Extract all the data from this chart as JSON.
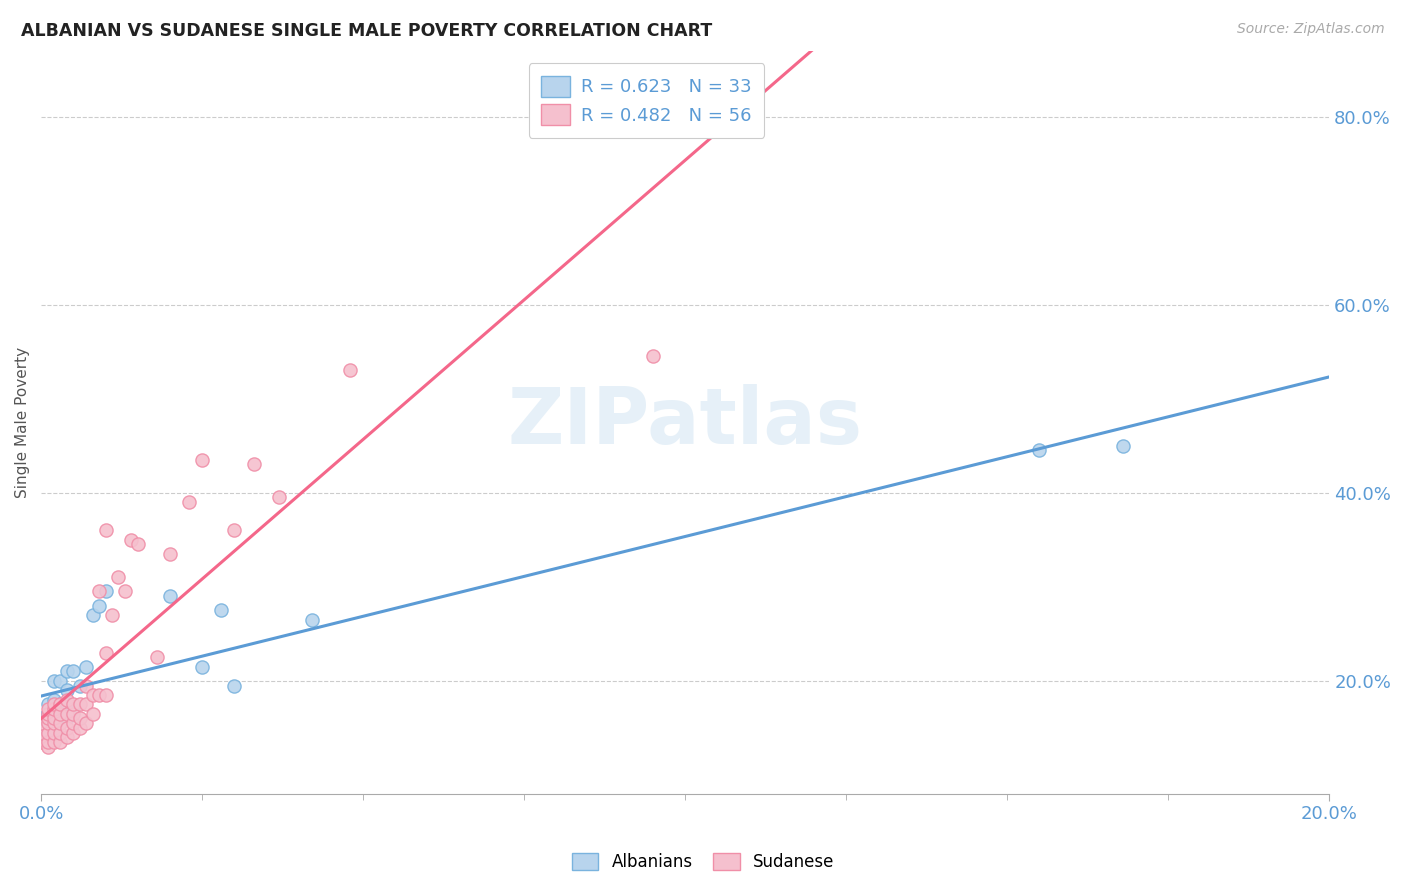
{
  "title": "ALBANIAN VS SUDANESE SINGLE MALE POVERTY CORRELATION CHART",
  "source": "Source: ZipAtlas.com",
  "ylabel": "Single Male Poverty",
  "blue_color": "#7ab3de",
  "blue_fill": "#b8d4ed",
  "pink_color": "#f08fa8",
  "pink_fill": "#f5c0ce",
  "line_blue": "#5b9bd5",
  "line_pink": "#f4678a",
  "R_blue": 0.623,
  "N_blue": 33,
  "R_pink": 0.482,
  "N_pink": 56,
  "watermark": "ZIPatlas",
  "legend_label_blue": "Albanians",
  "legend_label_pink": "Sudanese",
  "background_color": "#ffffff",
  "grid_color": "#cccccc",
  "albanian_x": [
    0.0,
    0.0,
    0.001,
    0.001,
    0.001,
    0.001,
    0.002,
    0.002,
    0.002,
    0.002,
    0.002,
    0.003,
    0.003,
    0.003,
    0.003,
    0.004,
    0.004,
    0.004,
    0.004,
    0.005,
    0.005,
    0.006,
    0.007,
    0.008,
    0.009,
    0.01,
    0.02,
    0.025,
    0.028,
    0.03,
    0.042,
    0.155,
    0.168
  ],
  "albanian_y": [
    0.155,
    0.16,
    0.145,
    0.155,
    0.165,
    0.175,
    0.15,
    0.16,
    0.17,
    0.18,
    0.2,
    0.155,
    0.165,
    0.175,
    0.2,
    0.16,
    0.175,
    0.19,
    0.21,
    0.17,
    0.21,
    0.195,
    0.215,
    0.27,
    0.28,
    0.295,
    0.29,
    0.215,
    0.275,
    0.195,
    0.265,
    0.445,
    0.45
  ],
  "sudanese_x": [
    0.0,
    0.0,
    0.0,
    0.001,
    0.001,
    0.001,
    0.001,
    0.001,
    0.001,
    0.001,
    0.002,
    0.002,
    0.002,
    0.002,
    0.002,
    0.002,
    0.003,
    0.003,
    0.003,
    0.003,
    0.003,
    0.004,
    0.004,
    0.004,
    0.004,
    0.005,
    0.005,
    0.005,
    0.005,
    0.006,
    0.006,
    0.006,
    0.007,
    0.007,
    0.007,
    0.008,
    0.008,
    0.009,
    0.009,
    0.01,
    0.01,
    0.01,
    0.011,
    0.012,
    0.013,
    0.014,
    0.015,
    0.018,
    0.02,
    0.023,
    0.025,
    0.03,
    0.033,
    0.037,
    0.048,
    0.095
  ],
  "sudanese_y": [
    0.135,
    0.145,
    0.155,
    0.13,
    0.135,
    0.145,
    0.155,
    0.16,
    0.165,
    0.17,
    0.135,
    0.145,
    0.155,
    0.16,
    0.17,
    0.175,
    0.135,
    0.145,
    0.155,
    0.165,
    0.175,
    0.14,
    0.15,
    0.165,
    0.18,
    0.145,
    0.155,
    0.165,
    0.175,
    0.15,
    0.16,
    0.175,
    0.155,
    0.175,
    0.195,
    0.165,
    0.185,
    0.185,
    0.295,
    0.185,
    0.23,
    0.36,
    0.27,
    0.31,
    0.295,
    0.35,
    0.345,
    0.225,
    0.335,
    0.39,
    0.435,
    0.36,
    0.43,
    0.395,
    0.53,
    0.545
  ],
  "xlim": [
    0.0,
    0.2
  ],
  "ylim": [
    0.08,
    0.87
  ],
  "yticks": [
    0.2,
    0.4,
    0.6,
    0.8
  ],
  "ytick_labels": [
    "20.0%",
    "40.0%",
    "60.0%",
    "80.0%"
  ],
  "xticks": [
    0.0,
    0.2
  ],
  "xtick_labels": [
    "0.0%",
    "20.0%"
  ],
  "minor_xticks": [
    0.025,
    0.05,
    0.075,
    0.1,
    0.125,
    0.15,
    0.175
  ]
}
